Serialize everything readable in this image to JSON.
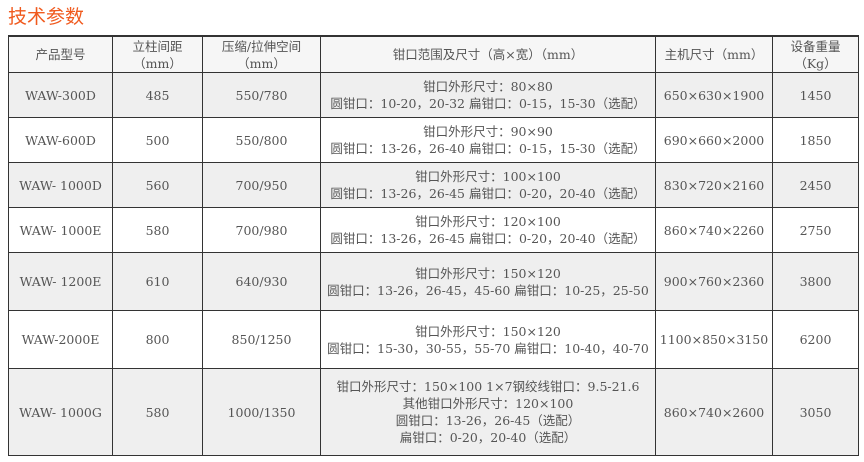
{
  "title": "技术参数",
  "headers": [
    "产品型号",
    "立柱间距\n（mm）",
    "压缩/拉伸空间\n（mm）",
    "钳口范围及尺寸（高×宽）（mm）",
    "主机尺寸（mm）",
    "设备重量\n（Kg）"
  ],
  "rows": [
    {
      "model": "WAW-300D",
      "column": "485",
      "space": "550/780",
      "jaw": [
        "钳口外形尺寸：80×80",
        "圆钳口：10-20，20-32 扁钳口：0-15，15-30（选配）"
      ],
      "size": "650×630×1900",
      "weight": "1450"
    },
    {
      "model": "WAW-600D",
      "column": "500",
      "space": "550/800",
      "jaw": [
        "钳口外形尺寸：90×90",
        "圆钳口：13-26，26-40 扁钳口：0-15，15-30（选配）"
      ],
      "size": "690×660×2000",
      "weight": "1850"
    },
    {
      "model": "WAW- 1000D",
      "column": "560",
      "space": "700/950",
      "jaw": [
        "钳口外形尺寸：100×100",
        "圆钳口：13-26，26-45  扁钳口：0-20，20-40（选配）"
      ],
      "size": "830×720×2160",
      "weight": "2450"
    },
    {
      "model": "WAW- 1000E",
      "column": "580",
      "space": "700/980",
      "jaw": [
        "钳口外形尺寸：120×100",
        "圆钳口：13-26，26-45  扁钳口：0-20，20-40（选配）"
      ],
      "size": "860×740×2260",
      "weight": "2750"
    },
    {
      "model": "WAW- 1200E",
      "column": "610",
      "space": "640/930",
      "jaw": [
        "钳口外形尺寸：150×120",
        "圆钳口：13-26，26-45，45-60 扁钳口：10-25，25-50"
      ],
      "size": "900×760×2360",
      "weight": "3800"
    },
    {
      "model": "WAW-2000E",
      "column": "800",
      "space": "850/1250",
      "jaw": [
        "钳口外形尺寸：150×120",
        "圆钳口：15-30，30-55，55-70 扁钳口：10-40，40-70"
      ],
      "size": "1100×850×3150",
      "weight": "6200"
    },
    {
      "model": "WAW- 1000G",
      "column": "580",
      "space": "1000/1350",
      "jaw": [
        "钳口外形尺寸：150×100 1×7钢绞线钳口：9.5-21.6",
        "其他钳口外形尺寸：120×100",
        "圆钳口：13-26，26-45（选配）",
        "扁钳口：0-20，20-40（选配）"
      ],
      "size": "860×740×2600",
      "weight": "3050"
    }
  ],
  "colors": {
    "title": "#f05a1e",
    "row_alt": "#efefef",
    "border": "#333333"
  }
}
